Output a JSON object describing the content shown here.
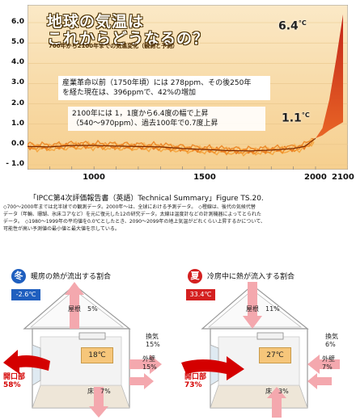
{
  "chart": {
    "title_line1": "地球の気温は",
    "title_line2": "これからどうなるの？",
    "subtitle": "700年から2100年までの気温変化（観測と予測）",
    "y_ticks": [
      "6.0",
      "5.0",
      "4.0",
      "3.0",
      "2.0",
      "1.0",
      "0.0",
      "- 1.0"
    ],
    "x_ticks": [
      "1000",
      "1500",
      "2000",
      "2100"
    ],
    "note1_line1": "産業革命以前（1750年頃）には 278ppm、その後250年",
    "note1_line2": "を経た現在は、396ppmで、42%の増加",
    "note2_line1": "2100年には 1，1度から6.4度の幅で上昇",
    "note2_line2": "（540～970ppm）、過去100年で0.7度上昇",
    "high_value": "6.4",
    "low_value": "1.1",
    "unit": "°C"
  },
  "chart_data": {
    "type": "area",
    "title": "地球の気温はこれからどうなるの？",
    "xlabel": "",
    "ylabel": "",
    "xlim": [
      700,
      2100
    ],
    "ylim": [
      -1.0,
      6.4
    ],
    "x_ticks": [
      1000,
      1500,
      2000,
      2100
    ],
    "y_ticks": [
      6.0,
      5.0,
      4.0,
      3.0,
      2.0,
      1.0,
      0.0,
      -1.0
    ],
    "series": [
      {
        "x": [
          700,
          800,
          900,
          1000,
          1100,
          1200,
          1300,
          1400,
          1500,
          1600,
          1700,
          1800,
          1900,
          1950,
          2000
        ],
        "values": [
          -0.1,
          -0.12,
          -0.05,
          -0.05,
          -0.08,
          -0.1,
          -0.12,
          -0.2,
          -0.25,
          -0.3,
          -0.32,
          -0.28,
          -0.2,
          -0.1,
          0.3
        ]
      },
      {
        "x": [
          2000,
          2025,
          2050,
          2075,
          2100
        ],
        "values": [
          0.3,
          0.8,
          2.2,
          4.2,
          6.4
        ]
      },
      {
        "x": [
          2000,
          2025,
          2050,
          2075,
          2100
        ],
        "values": [
          0.3,
          0.45,
          0.7,
          0.9,
          1.1
        ]
      }
    ]
  },
  "source": {
    "line1": "「IPCC第4次評価報告書（英語）Technical Summary」Figure TS.20.",
    "line2": "◇700～2000年までは北半球での観測データ。2000年～は、全球における予測データ。　◇橙線は、後代の気候代替",
    "line3": "データ（年輪、珊瑚、氷床コアなど）を元に復元した12の研究データ。太線は温度計などの計測機器によってとられた",
    "line4": "データ。　◇1980～1999年の平均値を0.0℃としたとき、2090～2099年の地上気温がどれくらい上昇するかについて、",
    "line5": "可能性が高い予測値の最小値と最大値を示している。"
  },
  "winter": {
    "badge": "冬",
    "title": "暖房の熱が流出する割合",
    "outside_temp": "-2.6℃",
    "room_temp": "18℃",
    "roof_label": "屋根",
    "roof_value": "5%",
    "vent_label": "換気",
    "vent_value": "15%",
    "wall_label": "外壁",
    "wall_value": "15%",
    "floor_label": "床",
    "floor_value": "7%",
    "opening_label": "開口部",
    "opening_value": "58%"
  },
  "summer": {
    "badge": "夏",
    "title": "冷房中に熱が流入する割合",
    "outside_temp": "33.4℃",
    "room_temp": "27℃",
    "roof_label": "屋根",
    "roof_value": "11%",
    "vent_label": "換気",
    "vent_value": "6%",
    "wall_label": "外壁",
    "wall_value": "7%",
    "floor_label": "床",
    "floor_value": "3%",
    "opening_label": "開口部",
    "opening_value": "73%"
  },
  "colors": {
    "winter_badge": "#1f5fbf",
    "summer_badge": "#d42020",
    "arrow_pink": "#f4a8ae",
    "arrow_red": "#d40000",
    "chart_orange": "#f08020"
  }
}
